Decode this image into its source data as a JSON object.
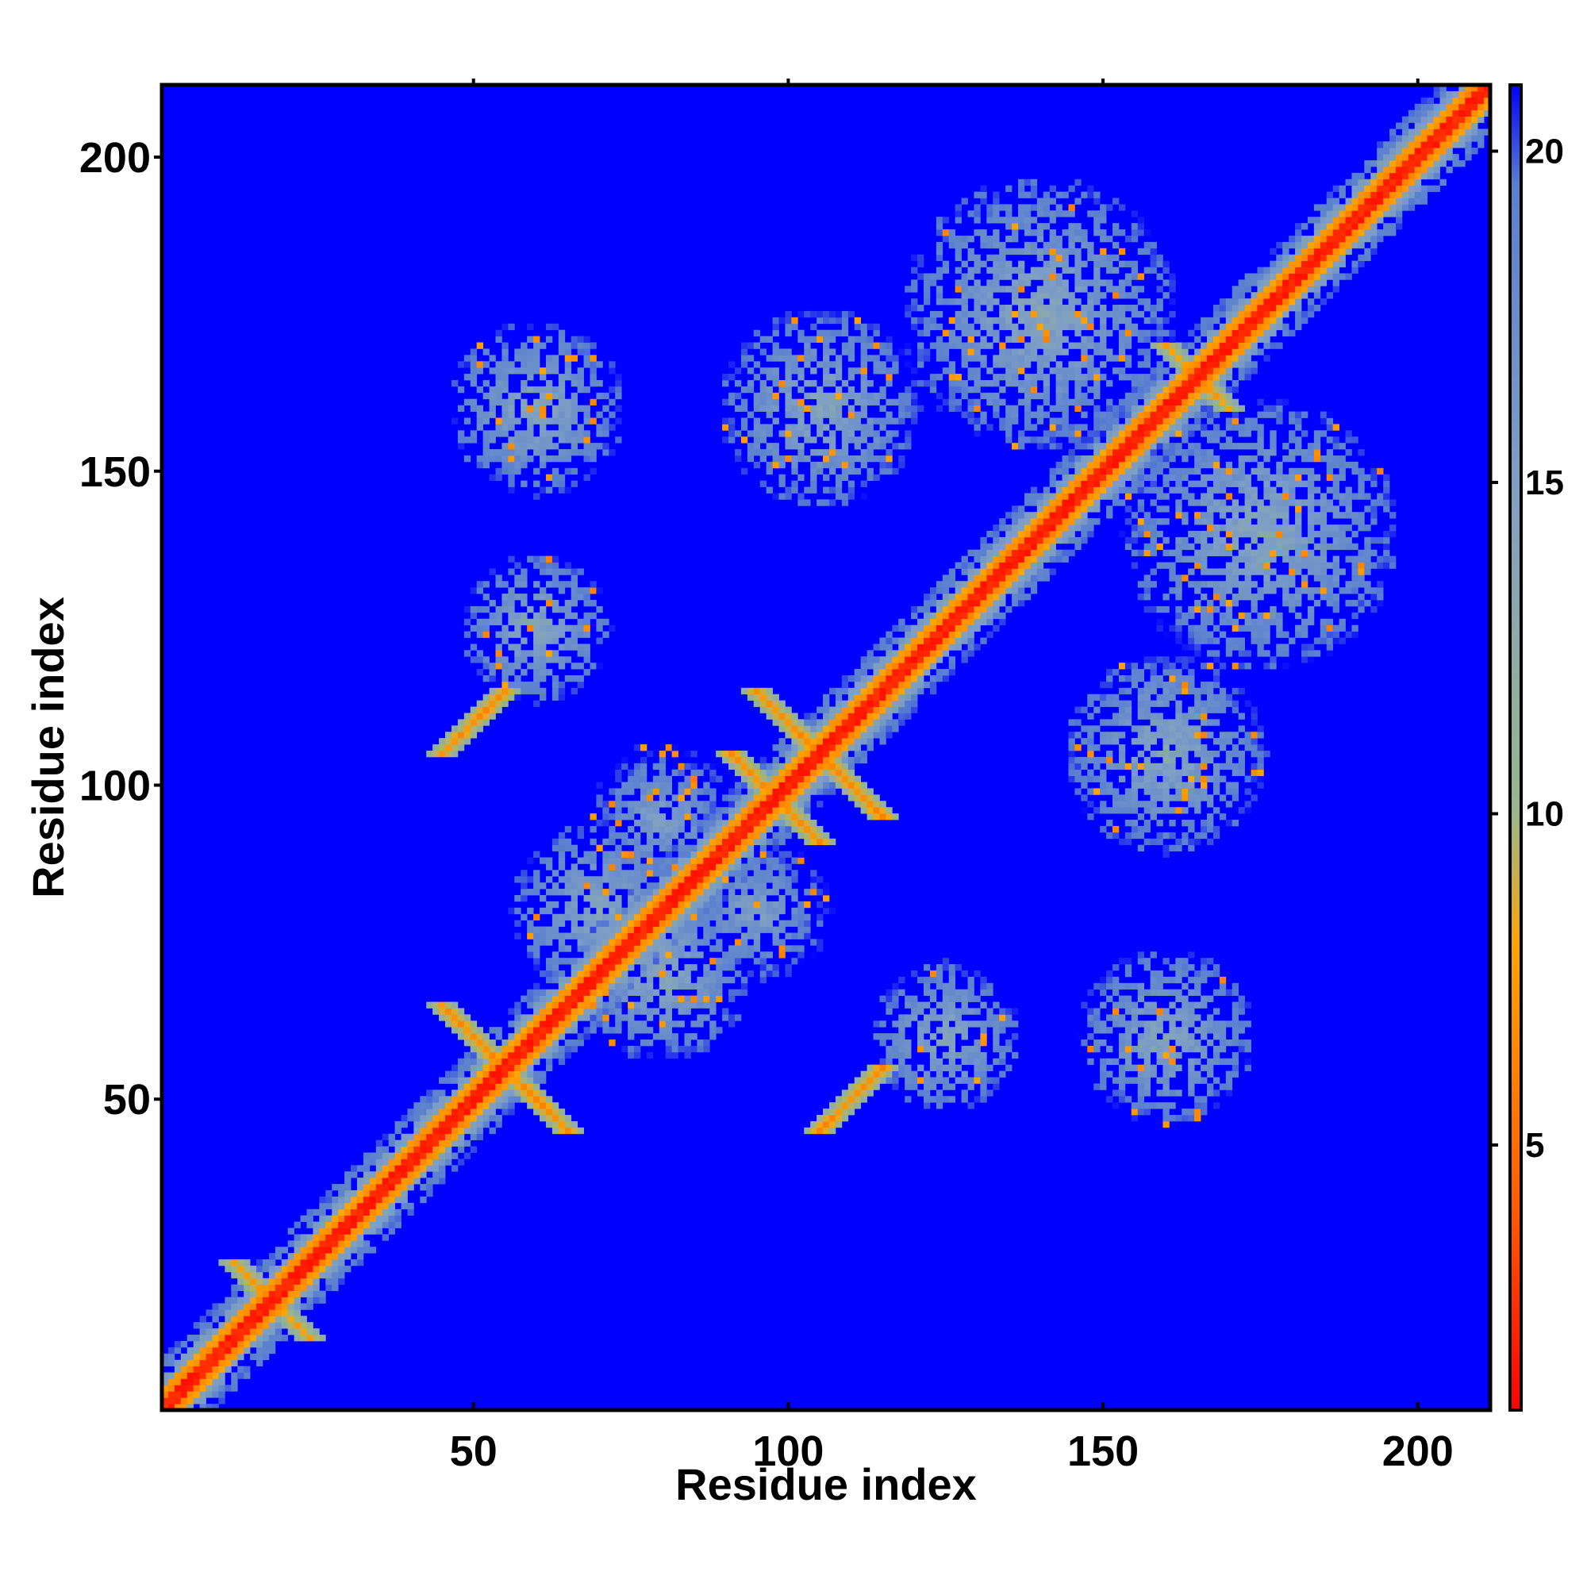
{
  "chart_data": {
    "type": "heatmap",
    "title": "",
    "xlabel": "Residue index",
    "ylabel": "Residue index",
    "xlim": [
      1,
      211
    ],
    "ylim": [
      1,
      211
    ],
    "xticks": [
      50,
      100,
      150,
      200
    ],
    "yticks": [
      50,
      100,
      150,
      200
    ],
    "colorbar": {
      "ticks": [
        5,
        10,
        15,
        20
      ],
      "range": [
        1,
        21
      ],
      "scale": [
        {
          "value": 1,
          "color": "#ff0000"
        },
        {
          "value": 4,
          "color": "#ff5a00"
        },
        {
          "value": 8,
          "color": "#ffa500"
        },
        {
          "value": 10,
          "color": "#9ab78a"
        },
        {
          "value": 15,
          "color": "#7e9fc4"
        },
        {
          "value": 19.5,
          "color": "#5a7fd0"
        },
        {
          "value": 21,
          "color": "#0000ff"
        }
      ]
    },
    "background_value": 21,
    "grid": false,
    "contact_features": [
      {
        "kind": "diagonal",
        "value": 1.5
      },
      {
        "kind": "antiparallel",
        "center": [
          55,
          55
        ],
        "half_length": 10,
        "value": 6
      },
      {
        "kind": "antiparallel",
        "center": [
          105,
          105
        ],
        "half_length": 10,
        "value": 6
      },
      {
        "kind": "antiparallel",
        "center": [
          98,
          98
        ],
        "half_length": 7,
        "value": 6
      },
      {
        "kind": "antiparallel",
        "center": [
          165,
          165
        ],
        "half_length": 5,
        "value": 7
      },
      {
        "kind": "antiparallel",
        "center": [
          18,
          18
        ],
        "half_length": 6,
        "value": 7
      },
      {
        "kind": "parallel",
        "center": [
          50,
          110
        ],
        "half_length": 5,
        "value": 6
      },
      {
        "kind": "parallel",
        "center": [
          110,
          50
        ],
        "half_length": 5,
        "value": 6
      },
      {
        "kind": "patch",
        "center": [
          60,
          160
        ],
        "radius": 14,
        "value": 12
      },
      {
        "kind": "patch",
        "center": [
          160,
          60
        ],
        "radius": 14,
        "value": 12
      },
      {
        "kind": "patch",
        "center": [
          60,
          125
        ],
        "radius": 12,
        "value": 12
      },
      {
        "kind": "patch",
        "center": [
          125,
          60
        ],
        "radius": 12,
        "value": 12
      },
      {
        "kind": "patch",
        "center": [
          105,
          160
        ],
        "radius": 16,
        "value": 12
      },
      {
        "kind": "patch",
        "center": [
          160,
          105
        ],
        "radius": 16,
        "value": 12
      },
      {
        "kind": "patch",
        "center": [
          70,
          80
        ],
        "radius": 14,
        "value": 12
      },
      {
        "kind": "patch",
        "center": [
          80,
          70
        ],
        "radius": 14,
        "value": 12
      },
      {
        "kind": "patch",
        "center": [
          140,
          175
        ],
        "radius": 22,
        "value": 12
      },
      {
        "kind": "patch",
        "center": [
          175,
          140
        ],
        "radius": 22,
        "value": 12
      },
      {
        "kind": "patch",
        "center": [
          80,
          95
        ],
        "radius": 12,
        "value": 13
      },
      {
        "kind": "patch",
        "center": [
          95,
          80
        ],
        "radius": 12,
        "value": 13
      }
    ]
  }
}
